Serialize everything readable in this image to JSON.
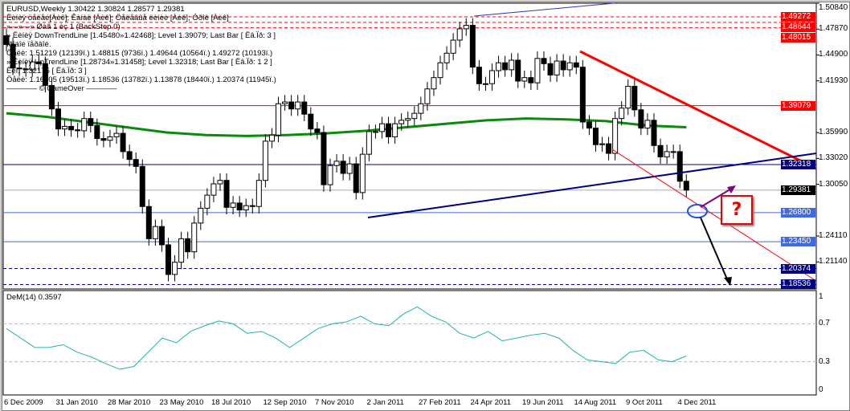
{
  "header": {
    "title": "EURUSD,Weekly  1.30422 1.30824 1.28577 1.29381",
    "lines": [
      "Ëèíèÿ öåëåé[Àèê]; Êàíàë [Àèê]; Öåëåâûå ëèíèè [Àèê]; Óðîê [Àèê]",
      "»—»—» Øàã 1 èç 1 (BackStep 0)",
      "» Ëèíèÿ DownTrendLine [1.45480»1.42468]; Level 1.39079; Last Bar [ Ëâ.Ïð: 3 ]",
      "Ïðîáîé ïåðâîé.",
      "Öåëè: 1.51219 (12139ï.) 1.48815 (9736ï.) 1.49644 (10564ï.) 1.49272 (10193ï.)",
      "» Ëèíèÿ UpTrendLine [1.28734»1.31458]; Level 1.32318; Last Bar [ Ëâ.Ïð: 1 2 ]",
      "Ëèí. 1.32175 [ Ëâ.Ïð: 3 ]",
      "Öåëè: 1.16805 (19513ï.) 1.18536 (13782ï.) 1.13878 (18440ï.) 1.20374 (11945ï.)",
      "———— © GameOver ————"
    ]
  },
  "colors": {
    "bull": "#ffffff",
    "bear": "#000000",
    "ma": "#0a8a0a",
    "downtrend": "#ff0000",
    "uptrend": "#000080",
    "dem": "#20b2aa"
  },
  "chart_data": {
    "type": "candlestick",
    "symbol": "EURUSD",
    "timeframe": "Weekly",
    "ylim": [
      1.1817,
      1.5084
    ],
    "y_ticks": [
      "1.50840",
      "1.47870",
      "1.44900",
      "1.41930",
      "1.35990",
      "1.33020",
      "1.30050",
      "1.24110",
      "1.21140"
    ],
    "x_ticks": [
      "6 Dec 2009",
      "31 Jan 2010",
      "28 Mar 2010",
      "23 May 2010",
      "18 Jul 2010",
      "12 Sep 2010",
      "7 Nov 2010",
      "2 Jan 2011",
      "27 Feb 2011",
      "24 Apr 2011",
      "19 Jun 2011",
      "14 Aug 2011",
      "9 Oct 2011",
      "4 Dec 2011"
    ],
    "closes": [
      1.461,
      1.434,
      1.433,
      1.432,
      1.441,
      1.439,
      1.414,
      1.387,
      1.364,
      1.367,
      1.363,
      1.362,
      1.376,
      1.368,
      1.353,
      1.351,
      1.355,
      1.359,
      1.338,
      1.329,
      1.321,
      1.275,
      1.238,
      1.252,
      1.231,
      1.197,
      1.211,
      1.238,
      1.223,
      1.256,
      1.273,
      1.288,
      1.301,
      1.305,
      1.274,
      1.279,
      1.271,
      1.276,
      1.275,
      1.305,
      1.35,
      1.357,
      1.393,
      1.395,
      1.387,
      1.395,
      1.381,
      1.364,
      1.36,
      1.3,
      1.322,
      1.327,
      1.313,
      1.324,
      1.291,
      1.335,
      1.361,
      1.361,
      1.37,
      1.355,
      1.37,
      1.374,
      1.376,
      1.382,
      1.393,
      1.41,
      1.423,
      1.44,
      1.451,
      1.466,
      1.479,
      1.483,
      1.435,
      1.416,
      1.416,
      1.431,
      1.44,
      1.432,
      1.443,
      1.419,
      1.423,
      1.417,
      1.445,
      1.439,
      1.426,
      1.442,
      1.432,
      1.44,
      1.435,
      1.372,
      1.365,
      1.346,
      1.347,
      1.336,
      1.376,
      1.388,
      1.413,
      1.386,
      1.365,
      1.374,
      1.345,
      1.332,
      1.338,
      1.338,
      1.304,
      1.2938
    ],
    "last_bar": {
      "open": 1.30422,
      "high": 1.30824,
      "low": 1.28577,
      "close": 1.29381
    },
    "moving_average": [
      1.382,
      1.378,
      1.372,
      1.366,
      1.36,
      1.357,
      1.356,
      1.357,
      1.359,
      1.362,
      1.366,
      1.37,
      1.374,
      1.376,
      1.375,
      1.373,
      1.368,
      1.366
    ],
    "levels": [
      {
        "label": "1.49272",
        "price": 1.49272,
        "color": "#ff0000",
        "style": "dashed"
      },
      {
        "label": "1.48644",
        "price": 1.48644,
        "color": "#ff0000",
        "style": "dashed"
      },
      {
        "label": "1.48015",
        "price": 1.48015,
        "color": "#ff0000",
        "style": "dashed"
      },
      {
        "label": "1.39079",
        "price": 1.39079,
        "color": "#ff0000",
        "style": "solid"
      },
      {
        "label": "1.32318",
        "price": 1.32318,
        "color": "#000080",
        "style": "solid"
      },
      {
        "label": "1.29381",
        "price": 1.29381,
        "color": "#000000",
        "style": "solid"
      },
      {
        "label": "1.26800",
        "price": 1.268,
        "color": "#4169e1",
        "style": "solid"
      },
      {
        "label": "1.23450",
        "price": 1.2345,
        "color": "#4169e1",
        "style": "solid"
      },
      {
        "label": "1.20374",
        "price": 1.20374,
        "color": "#000080",
        "style": "dashed"
      },
      {
        "label": "1.18536",
        "price": 1.18536,
        "color": "#000080",
        "style": "dashed"
      }
    ],
    "annotation": "?",
    "indicator": {
      "title": "DeM(14) 0.3597",
      "ylim": [
        0,
        1
      ],
      "y_ticks": [
        "1",
        "0.7",
        "0.3",
        "0"
      ],
      "values": [
        0.65,
        0.55,
        0.45,
        0.45,
        0.48,
        0.4,
        0.35,
        0.28,
        0.22,
        0.25,
        0.4,
        0.55,
        0.5,
        0.62,
        0.68,
        0.73,
        0.7,
        0.6,
        0.62,
        0.55,
        0.45,
        0.55,
        0.65,
        0.7,
        0.72,
        0.78,
        0.7,
        0.68,
        0.8,
        0.88,
        0.78,
        0.72,
        0.6,
        0.55,
        0.62,
        0.52,
        0.55,
        0.58,
        0.6,
        0.55,
        0.42,
        0.32,
        0.3,
        0.28,
        0.4,
        0.42,
        0.32,
        0.3,
        0.36
      ]
    }
  }
}
